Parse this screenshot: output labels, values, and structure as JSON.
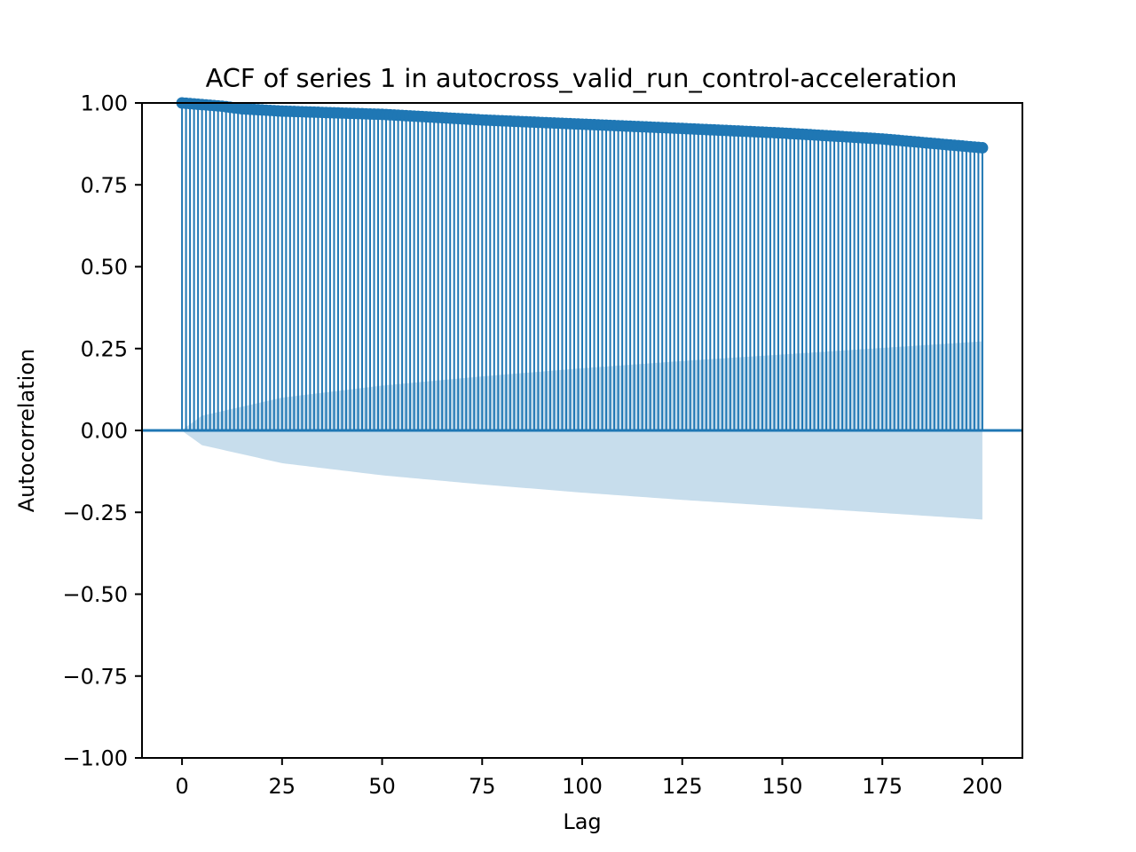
{
  "chart_data": {
    "type": "stem",
    "title": "ACF of series 1 in autocross_valid_run_control-acceleration",
    "xlabel": "Lag",
    "ylabel": "Autocorrelation",
    "xlim": [
      -10,
      210
    ],
    "ylim": [
      -1.0,
      1.0
    ],
    "xticks": [
      0,
      25,
      50,
      75,
      100,
      125,
      150,
      175,
      200
    ],
    "xtick_labels": [
      "0",
      "25",
      "50",
      "75",
      "100",
      "125",
      "150",
      "175",
      "200"
    ],
    "yticks": [
      -1.0,
      -0.75,
      -0.5,
      -0.25,
      0.0,
      0.25,
      0.5,
      0.75,
      1.0
    ],
    "ytick_labels": [
      "−1.00",
      "−0.75",
      "−0.50",
      "−0.25",
      "0.00",
      "0.25",
      "0.50",
      "0.75",
      "1.00"
    ],
    "grid": false,
    "lags": {
      "start": 0,
      "end": 200,
      "step": 1
    },
    "acf_anchors": [
      [
        0,
        1.0
      ],
      [
        10,
        0.99
      ],
      [
        15,
        0.982
      ],
      [
        25,
        0.975
      ],
      [
        50,
        0.965
      ],
      [
        75,
        0.948
      ],
      [
        100,
        0.935
      ],
      [
        125,
        0.922
      ],
      [
        150,
        0.908
      ],
      [
        175,
        0.89
      ],
      [
        200,
        0.863
      ]
    ],
    "confidence_band": {
      "anchors": [
        [
          0,
          0.0
        ],
        [
          1,
          0.01
        ],
        [
          5,
          0.045
        ],
        [
          25,
          0.1
        ],
        [
          50,
          0.137
        ],
        [
          75,
          0.165
        ],
        [
          100,
          0.19
        ],
        [
          125,
          0.212
        ],
        [
          150,
          0.232
        ],
        [
          175,
          0.252
        ],
        [
          200,
          0.272
        ]
      ]
    },
    "colors": {
      "stem": "#1f77b4",
      "band": "#1f77b4",
      "band_opacity": 0.25
    }
  }
}
